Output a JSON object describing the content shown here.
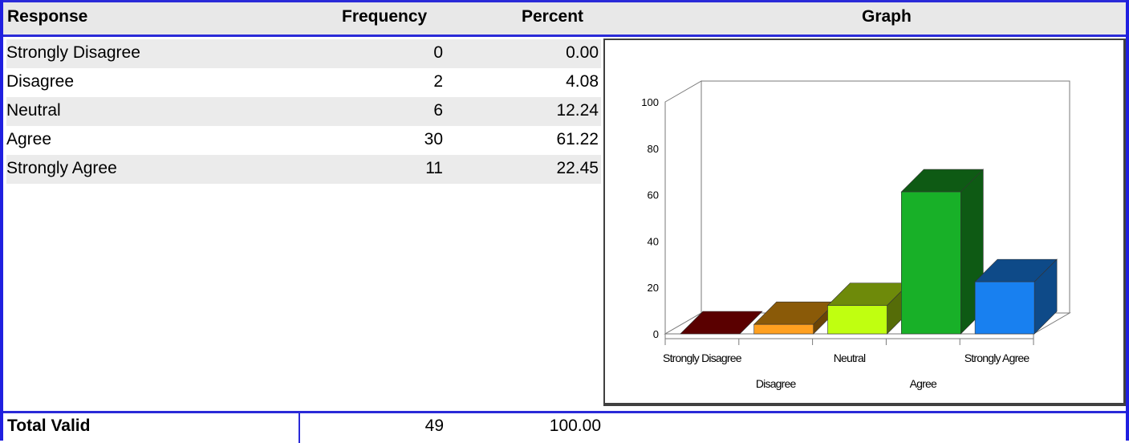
{
  "header": {
    "response": "Response",
    "frequency": "Frequency",
    "percent": "Percent",
    "graph": "Graph"
  },
  "rows": [
    {
      "response": "Strongly Disagree",
      "frequency": "0",
      "percent": "0.00"
    },
    {
      "response": "Disagree",
      "frequency": "2",
      "percent": "4.08"
    },
    {
      "response": "Neutral",
      "frequency": "6",
      "percent": "12.24"
    },
    {
      "response": "Agree",
      "frequency": "30",
      "percent": "61.22"
    },
    {
      "response": "Strongly Agree",
      "frequency": "11",
      "percent": "22.45"
    }
  ],
  "total": {
    "label": "Total Valid",
    "frequency": "49",
    "percent": "100.00"
  },
  "colors": {
    "border": "#2a2ad8",
    "header_bg": "#e8e8e8",
    "row_shade": "#ebebeb"
  },
  "chart_data": {
    "type": "bar",
    "categories": [
      "Strongly Disagree",
      "Disagree",
      "Neutral",
      "Agree",
      "Strongly Agree"
    ],
    "values": [
      0.0,
      4.08,
      12.24,
      61.22,
      22.45
    ],
    "ylim": [
      0,
      100
    ],
    "yticks": [
      "0",
      "20",
      "40",
      "60",
      "80",
      "100"
    ],
    "grid": false,
    "style": "3d",
    "bar_colors": [
      {
        "front": "#5a0000",
        "top": "#5a0000",
        "side": "#3a0000"
      },
      {
        "front": "#ffa020",
        "top": "#8a5a08",
        "side": "#6a4406"
      },
      {
        "front": "#c0ff10",
        "top": "#6e8a0a",
        "side": "#556c08"
      },
      {
        "front": "#18b028",
        "top": "#0e5a14",
        "side": "#0e5a14"
      },
      {
        "front": "#1880f0",
        "top": "#0e4a88",
        "side": "#0e4a88"
      }
    ]
  }
}
